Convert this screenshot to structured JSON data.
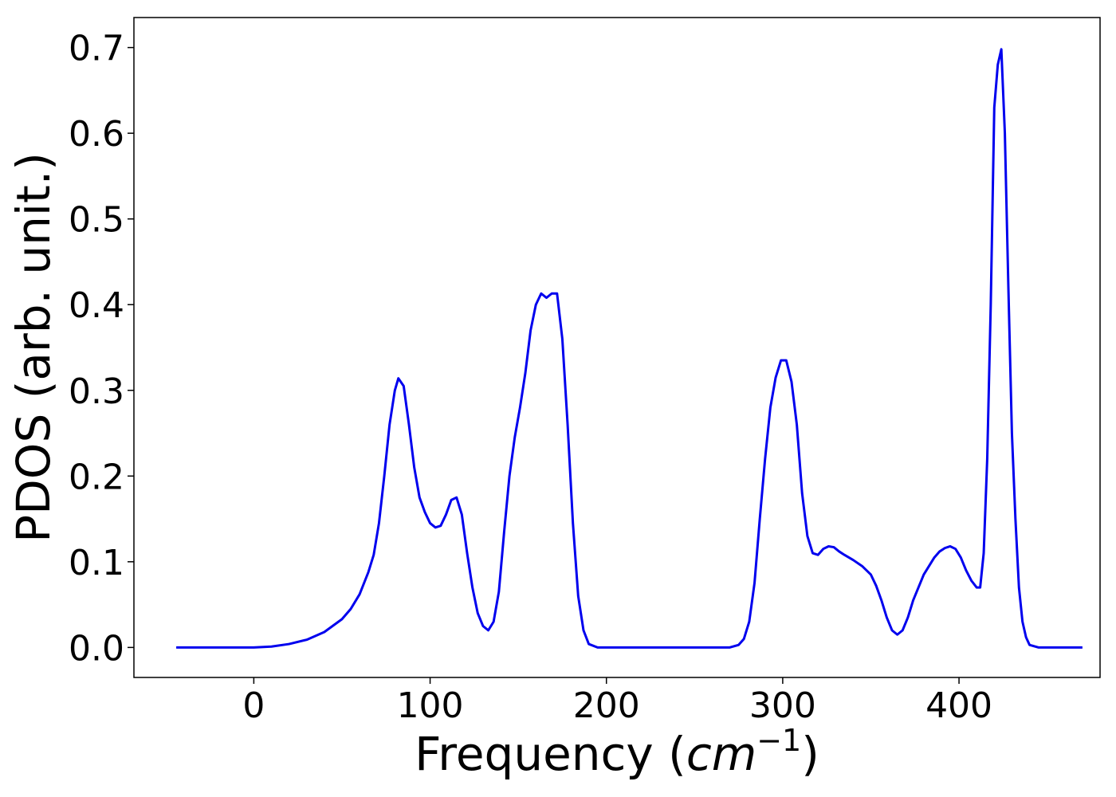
{
  "chart_data": {
    "type": "line",
    "title": "",
    "xlabel": "Frequency (cm⁻¹)",
    "xlabel_parts": {
      "prefix": "Frequency (",
      "unit": "cm",
      "exponent": "−1",
      "suffix": ")"
    },
    "ylabel": "PDOS (arb. unit.)",
    "xlim": [
      -68,
      480
    ],
    "ylim": [
      -0.035,
      0.735
    ],
    "xticks": [
      0,
      100,
      200,
      300,
      400
    ],
    "xtick_labels": [
      "0",
      "100",
      "200",
      "300",
      "400"
    ],
    "yticks": [
      0.0,
      0.1,
      0.2,
      0.3,
      0.4,
      0.5,
      0.6,
      0.7
    ],
    "ytick_labels": [
      "0.0",
      "0.1",
      "0.2",
      "0.3",
      "0.4",
      "0.5",
      "0.6",
      "0.7"
    ],
    "grid": false,
    "line_color": "#0000ee",
    "series": [
      {
        "x": [
          -44,
          0,
          10,
          20,
          30,
          40,
          50,
          55,
          60,
          65,
          68,
          71,
          74,
          77,
          80,
          82,
          85,
          88,
          91,
          94,
          97,
          100,
          103,
          106,
          109,
          112,
          115,
          118,
          121,
          124,
          127,
          130,
          133,
          136,
          139,
          142,
          145,
          148,
          151,
          154,
          157,
          160,
          163,
          166,
          169,
          172,
          175,
          178,
          181,
          184,
          187,
          190,
          195,
          200,
          250,
          270,
          275,
          278,
          281,
          284,
          287,
          290,
          293,
          296,
          299,
          302,
          305,
          308,
          311,
          314,
          317,
          320,
          323,
          326,
          329,
          332,
          335,
          340,
          345,
          350,
          353,
          356,
          359,
          362,
          365,
          368,
          371,
          374,
          377,
          380,
          383,
          386,
          389,
          392,
          395,
          398,
          401,
          404,
          407,
          410,
          412,
          414,
          416,
          418,
          420,
          422,
          424,
          426,
          428,
          430,
          432,
          434,
          436,
          438,
          440,
          445,
          470
        ],
        "y": [
          0.0,
          0.0,
          0.001,
          0.004,
          0.009,
          0.018,
          0.033,
          0.045,
          0.062,
          0.088,
          0.108,
          0.145,
          0.2,
          0.26,
          0.3,
          0.314,
          0.305,
          0.26,
          0.21,
          0.175,
          0.158,
          0.145,
          0.14,
          0.142,
          0.155,
          0.172,
          0.175,
          0.155,
          0.11,
          0.07,
          0.04,
          0.025,
          0.02,
          0.03,
          0.065,
          0.135,
          0.2,
          0.245,
          0.28,
          0.32,
          0.37,
          0.4,
          0.413,
          0.408,
          0.413,
          0.413,
          0.36,
          0.26,
          0.145,
          0.06,
          0.02,
          0.004,
          0.0,
          0.0,
          0.0,
          0.0,
          0.003,
          0.01,
          0.03,
          0.075,
          0.15,
          0.22,
          0.28,
          0.315,
          0.335,
          0.335,
          0.31,
          0.26,
          0.18,
          0.13,
          0.11,
          0.108,
          0.115,
          0.118,
          0.117,
          0.112,
          0.108,
          0.102,
          0.095,
          0.085,
          0.072,
          0.055,
          0.035,
          0.02,
          0.015,
          0.02,
          0.035,
          0.055,
          0.07,
          0.085,
          0.095,
          0.105,
          0.112,
          0.116,
          0.118,
          0.115,
          0.105,
          0.09,
          0.078,
          0.07,
          0.07,
          0.11,
          0.22,
          0.4,
          0.63,
          0.68,
          0.698,
          0.6,
          0.42,
          0.25,
          0.15,
          0.07,
          0.03,
          0.012,
          0.003,
          0.0,
          0.0
        ]
      }
    ]
  }
}
